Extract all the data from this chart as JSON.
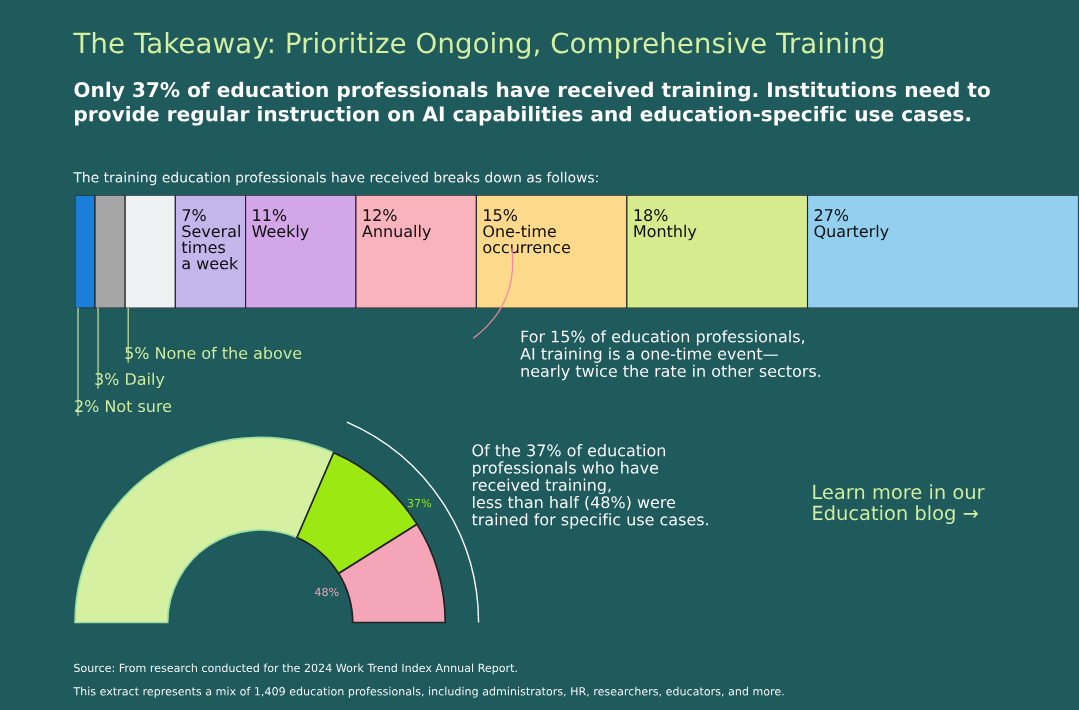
{
  "chart_data": [
    {
      "type": "bar",
      "orientation": "horizontal",
      "stacked": true,
      "title": "The Takeaway: Prioritize Ongoing, Comprehensive Training",
      "subtitle": "Only 37% of education professionals have received training. Institutions need to provide regular instruction on AI capabilities and education-specific use cases.",
      "categories": [
        null
      ],
      "xlim": [
        0,
        100
      ],
      "tick_labels": false,
      "series": [
        {
          "name": "Not sure",
          "color": "#1b7fd9",
          "values": [
            2
          ],
          "value_labels": [
            "2%"
          ]
        },
        {
          "name": "Daily",
          "color": "#a6a6a6",
          "values": [
            3
          ],
          "value_labels": [
            "3%"
          ]
        },
        {
          "name": "None of the above",
          "color": "#eef2f2",
          "values": [
            5
          ],
          "value_labels": [
            "5%"
          ]
        },
        {
          "name": "Several\ntimes\na week",
          "color": "#c4b5eb",
          "values": [
            7
          ],
          "value_labels": [
            "7%"
          ]
        },
        {
          "name": "Weekly",
          "color": "#d2a6e8",
          "values": [
            11
          ],
          "value_labels": [
            "11%"
          ]
        },
        {
          "name": "Annually",
          "color": "#f9b3bd",
          "values": [
            12
          ],
          "value_labels": [
            "12%"
          ]
        },
        {
          "name": "One-time\noccurrence",
          "color": "#fdd98c",
          "values": [
            15
          ],
          "value_labels": [
            "15%"
          ]
        },
        {
          "name": "Monthly",
          "color": "#d6eb8e",
          "values": [
            18
          ],
          "value_labels": [
            "18%"
          ]
        },
        {
          "name": "Quarterly",
          "color": "#93d0f0",
          "values": [
            27
          ],
          "value_labels": [
            "27%"
          ]
        }
      ],
      "annotations": [
        "The training education professionals have received breaks down as follows:",
        "For 15% of education professionals,\nAI training is a one-time event—\nnearly twice the rate in other sectors.",
        "Learn more in our\nEducation blog →"
      ]
    },
    {
      "type": "donut",
      "categories": [
        null,
        null,
        null
      ],
      "values": [
        63,
        19.2,
        17.8
      ],
      "colors": [
        "#d4f0a0",
        "#9be812",
        "#f4a6b8"
      ],
      "annotations": [
        "37%",
        "48%",
        "Of the 37% of education\nprofessionals who have\nreceived training,\nless than half (48%) were\ntrained for specific use cases.",
        "Source: From research conducted for the 2024 Work Trend Index Annual Report.",
        "This extract represents a mix of 1,409 education professionals, including administrators, HR, researchers, educators, and more."
      ]
    }
  ]
}
